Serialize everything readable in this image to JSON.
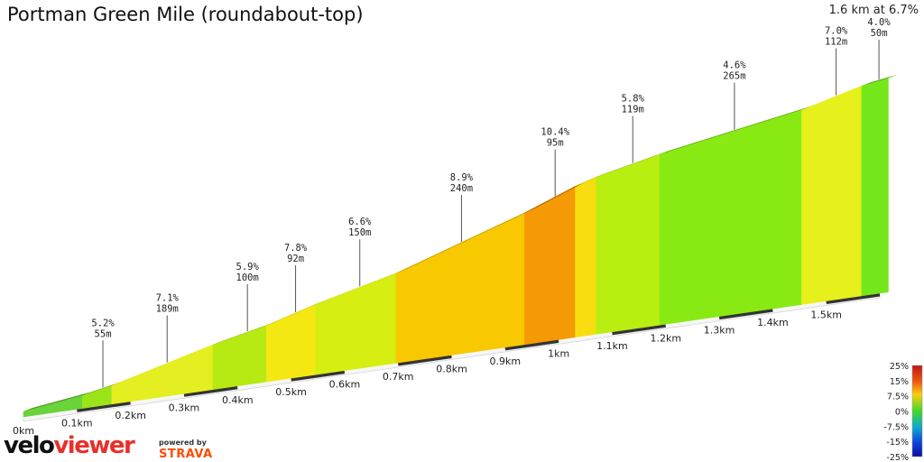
{
  "header": {
    "title": "Portman Green Mile (roundabout-top)",
    "summary": "1.6 km at 6.7%"
  },
  "branding": {
    "velo": "velo",
    "viewer": "viewer",
    "powered_by": "powered by",
    "strava": "STRAVA"
  },
  "chart_data": {
    "type": "area",
    "title": "Portman Green Mile (roundabout-top)",
    "subtitle": "1.6 km at 6.7%",
    "x_unit": "km",
    "xlim": [
      0,
      1.6
    ],
    "distance_ticks": [
      "0km",
      "0.1km",
      "0.2km",
      "0.3km",
      "0.4km",
      "0.5km",
      "0.6km",
      "0.7km",
      "0.8km",
      "0.9km",
      "1km",
      "1.1km",
      "1.2km",
      "1.3km",
      "1.4km",
      "1.5km"
    ],
    "segments": [
      {
        "start_km": 0.0,
        "end_km": 0.11,
        "grade": 3.5,
        "color": "#6ad43a"
      },
      {
        "start_km": 0.11,
        "end_km": 0.165,
        "grade": 5.2,
        "color": "#9ce41a"
      },
      {
        "start_km": 0.165,
        "end_km": 0.354,
        "grade": 7.1,
        "color": "#e4ee20"
      },
      {
        "start_km": 0.354,
        "end_km": 0.454,
        "grade": 5.9,
        "color": "#b6ea12"
      },
      {
        "start_km": 0.454,
        "end_km": 0.546,
        "grade": 7.8,
        "color": "#f5e812"
      },
      {
        "start_km": 0.546,
        "end_km": 0.696,
        "grade": 6.6,
        "color": "#d6ee12"
      },
      {
        "start_km": 0.696,
        "end_km": 0.936,
        "grade": 8.9,
        "color": "#f8c800"
      },
      {
        "start_km": 0.936,
        "end_km": 1.031,
        "grade": 10.4,
        "color": "#f59a05"
      },
      {
        "start_km": 1.031,
        "end_km": 1.07,
        "grade": 8.0,
        "color": "#f8de10"
      },
      {
        "start_km": 1.07,
        "end_km": 1.189,
        "grade": 5.8,
        "color": "#b8ee10"
      },
      {
        "start_km": 1.189,
        "end_km": 1.454,
        "grade": 4.6,
        "color": "#88ea12"
      },
      {
        "start_km": 1.454,
        "end_km": 1.566,
        "grade": 7.0,
        "color": "#e6f01a"
      },
      {
        "start_km": 1.566,
        "end_km": 1.616,
        "grade": 4.0,
        "color": "#74e81a"
      }
    ],
    "annotations": [
      {
        "km": 0.14,
        "grade_label": "5.2%",
        "length_label": "55m"
      },
      {
        "km": 0.26,
        "grade_label": "7.1%",
        "length_label": "189m"
      },
      {
        "km": 0.41,
        "grade_label": "5.9%",
        "length_label": "100m"
      },
      {
        "km": 0.5,
        "grade_label": "7.8%",
        "length_label": "92m"
      },
      {
        "km": 0.62,
        "grade_label": "6.6%",
        "length_label": "150m"
      },
      {
        "km": 0.81,
        "grade_label": "8.9%",
        "length_label": "240m"
      },
      {
        "km": 0.985,
        "grade_label": "10.4%",
        "length_label": "95m"
      },
      {
        "km": 1.13,
        "grade_label": "5.8%",
        "length_label": "119m"
      },
      {
        "km": 1.32,
        "grade_label": "4.6%",
        "length_label": "265m"
      },
      {
        "km": 1.51,
        "grade_label": "7.0%",
        "length_label": "112m"
      },
      {
        "km": 1.59,
        "grade_label": "4.0%",
        "length_label": "50m"
      }
    ],
    "legend": {
      "position": "bottom-right",
      "labels": [
        "25%",
        "15%",
        "7.5%",
        "0%",
        "-7.5%",
        "-15%",
        "-25%"
      ]
    }
  }
}
